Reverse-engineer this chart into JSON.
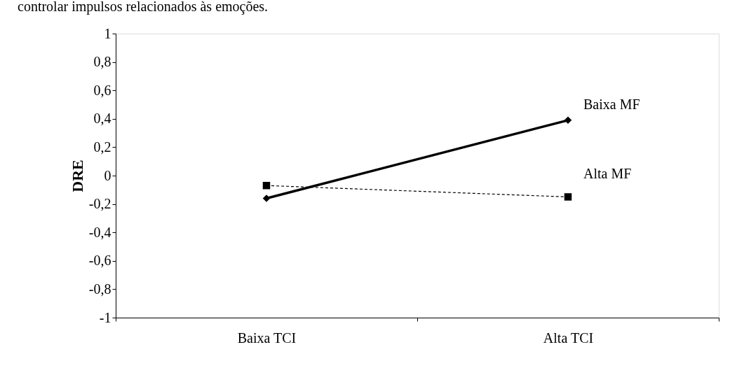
{
  "chart_data": {
    "type": "line",
    "annotations": [
      "controlar impulsos relacionados às emoções."
    ],
    "ylabel": "DRE",
    "categories": [
      "Baixa TCI",
      "Alta TCI"
    ],
    "series": [
      {
        "name": "Baixa MF",
        "color": "#000000",
        "values": [
          -0.16,
          0.39
        ],
        "marker": "diamond",
        "line_style": "solid"
      },
      {
        "name": "Alta MF",
        "color": "#000000",
        "values": [
          -0.07,
          -0.15
        ],
        "marker": "square",
        "line_style": "dashed"
      }
    ],
    "ylim": [
      -1,
      1
    ],
    "yticks": [
      {
        "value": -1,
        "label": "-1"
      },
      {
        "value": -0.8,
        "label": "-0,8"
      },
      {
        "value": -0.6,
        "label": "-0,6"
      },
      {
        "value": -0.4,
        "label": "-0,4"
      },
      {
        "value": -0.2,
        "label": "-0,2"
      },
      {
        "value": 0,
        "label": "0"
      },
      {
        "value": 0.2,
        "label": "0,2"
      },
      {
        "value": 0.4,
        "label": "0,4"
      },
      {
        "value": 0.6,
        "label": "0,6"
      },
      {
        "value": 0.8,
        "label": "0,8"
      },
      {
        "value": 1,
        "label": "1"
      }
    ],
    "grid": false
  }
}
